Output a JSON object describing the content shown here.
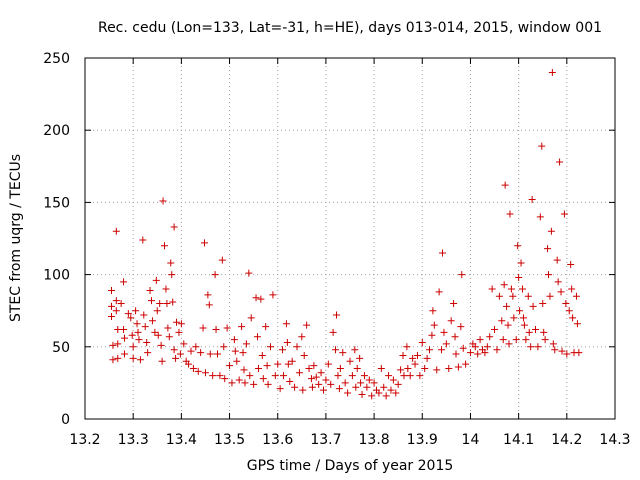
{
  "chart_data": {
    "type": "scatter",
    "title": "Rec. cedu (Lon=133, Lat=-31, h=HE), days 013-014, 2015, window 001",
    "xlabel": "GPS time / Days of year 2015",
    "ylabel": "STEC from uqrg / TECUs",
    "xlim": [
      13.2,
      14.3
    ],
    "ylim": [
      0,
      250
    ],
    "xticks": [
      "13.2",
      "13.3",
      "13.4",
      "13.5",
      "13.6",
      "13.7",
      "13.8",
      "13.9",
      "14",
      "14.1",
      "14.2",
      "14.3"
    ],
    "yticks": [
      "0",
      "50",
      "100",
      "150",
      "200",
      "250"
    ],
    "grid": true,
    "marker": "plus",
    "color": "#cc0000",
    "series": [
      {
        "name": "",
        "points": [
          [
            13.255,
            89
          ],
          [
            13.255,
            78
          ],
          [
            13.255,
            71
          ],
          [
            13.258,
            51
          ],
          [
            13.258,
            41
          ],
          [
            13.265,
            130
          ],
          [
            13.265,
            82
          ],
          [
            13.265,
            75
          ],
          [
            13.268,
            62
          ],
          [
            13.268,
            52
          ],
          [
            13.268,
            42
          ],
          [
            13.275,
            80
          ],
          [
            13.28,
            95
          ],
          [
            13.28,
            62
          ],
          [
            13.282,
            56
          ],
          [
            13.282,
            45
          ],
          [
            13.29,
            73
          ],
          [
            13.295,
            70
          ],
          [
            13.298,
            58
          ],
          [
            13.3,
            50
          ],
          [
            13.3,
            42
          ],
          [
            13.305,
            75
          ],
          [
            13.308,
            66
          ],
          [
            13.31,
            60
          ],
          [
            13.312,
            55
          ],
          [
            13.315,
            41
          ],
          [
            13.32,
            124
          ],
          [
            13.322,
            72
          ],
          [
            13.325,
            64
          ],
          [
            13.328,
            53
          ],
          [
            13.33,
            46
          ],
          [
            13.335,
            89
          ],
          [
            13.338,
            82
          ],
          [
            13.34,
            68
          ],
          [
            13.345,
            60
          ],
          [
            13.348,
            96
          ],
          [
            13.35,
            75
          ],
          [
            13.352,
            58
          ],
          [
            13.355,
            80
          ],
          [
            13.358,
            51
          ],
          [
            13.36,
            40
          ],
          [
            13.362,
            151
          ],
          [
            13.365,
            120
          ],
          [
            13.368,
            90
          ],
          [
            13.37,
            80
          ],
          [
            13.372,
            63
          ],
          [
            13.375,
            57
          ],
          [
            13.378,
            108
          ],
          [
            13.38,
            100
          ],
          [
            13.382,
            81
          ],
          [
            13.385,
            133
          ],
          [
            13.385,
            48
          ],
          [
            13.388,
            42
          ],
          [
            13.39,
            67
          ],
          [
            13.395,
            60
          ],
          [
            13.398,
            45
          ],
          [
            13.4,
            66
          ],
          [
            13.405,
            52
          ],
          [
            13.41,
            40
          ],
          [
            13.415,
            38
          ],
          [
            13.42,
            47
          ],
          [
            13.425,
            35
          ],
          [
            13.43,
            50
          ],
          [
            13.435,
            33
          ],
          [
            13.44,
            46
          ],
          [
            13.445,
            63
          ],
          [
            13.448,
            122
          ],
          [
            13.45,
            32
          ],
          [
            13.455,
            86
          ],
          [
            13.458,
            79
          ],
          [
            13.46,
            45
          ],
          [
            13.465,
            30
          ],
          [
            13.47,
            100
          ],
          [
            13.472,
            62
          ],
          [
            13.475,
            45
          ],
          [
            13.48,
            30
          ],
          [
            13.485,
            110
          ],
          [
            13.488,
            50
          ],
          [
            13.49,
            28
          ],
          [
            13.495,
            63
          ],
          [
            13.5,
            37
          ],
          [
            13.505,
            25
          ],
          [
            13.51,
            55
          ],
          [
            13.512,
            47
          ],
          [
            13.515,
            40
          ],
          [
            13.52,
            27
          ],
          [
            13.525,
            64
          ],
          [
            13.528,
            46
          ],
          [
            13.53,
            34
          ],
          [
            13.532,
            25
          ],
          [
            13.535,
            52
          ],
          [
            13.54,
            101
          ],
          [
            13.542,
            30
          ],
          [
            13.545,
            70
          ],
          [
            13.55,
            24
          ],
          [
            13.555,
            84
          ],
          [
            13.558,
            57
          ],
          [
            13.56,
            35
          ],
          [
            13.565,
            83
          ],
          [
            13.568,
            44
          ],
          [
            13.57,
            28
          ],
          [
            13.575,
            64
          ],
          [
            13.578,
            37
          ],
          [
            13.58,
            24
          ],
          [
            13.585,
            50
          ],
          [
            13.59,
            86
          ],
          [
            13.595,
            30
          ],
          [
            13.6,
            38
          ],
          [
            13.605,
            21
          ],
          [
            13.61,
            48
          ],
          [
            13.612,
            30
          ],
          [
            13.618,
            66
          ],
          [
            13.62,
            53
          ],
          [
            13.622,
            38
          ],
          [
            13.625,
            26
          ],
          [
            13.63,
            40
          ],
          [
            13.635,
            22
          ],
          [
            13.64,
            50
          ],
          [
            13.645,
            32
          ],
          [
            13.65,
            57
          ],
          [
            13.652,
            20
          ],
          [
            13.655,
            44
          ],
          [
            13.66,
            65
          ],
          [
            13.665,
            35
          ],
          [
            13.67,
            28
          ],
          [
            13.672,
            22
          ],
          [
            13.675,
            37
          ],
          [
            13.68,
            29
          ],
          [
            13.685,
            24
          ],
          [
            13.69,
            32
          ],
          [
            13.695,
            20
          ],
          [
            13.7,
            27
          ],
          [
            13.705,
            38
          ],
          [
            13.71,
            24
          ],
          [
            13.715,
            60
          ],
          [
            13.72,
            48
          ],
          [
            13.722,
            72
          ],
          [
            13.725,
            30
          ],
          [
            13.728,
            21
          ],
          [
            13.73,
            35
          ],
          [
            13.735,
            46
          ],
          [
            13.74,
            25
          ],
          [
            13.745,
            18
          ],
          [
            13.75,
            40
          ],
          [
            13.755,
            30
          ],
          [
            13.76,
            48
          ],
          [
            13.762,
            22
          ],
          [
            13.765,
            35
          ],
          [
            13.77,
            42
          ],
          [
            13.772,
            25
          ],
          [
            13.775,
            17
          ],
          [
            13.78,
            30
          ],
          [
            13.785,
            22
          ],
          [
            13.79,
            27
          ],
          [
            13.795,
            16
          ],
          [
            13.8,
            25
          ],
          [
            13.805,
            20
          ],
          [
            13.81,
            18
          ],
          [
            13.815,
            35
          ],
          [
            13.82,
            22
          ],
          [
            13.825,
            16
          ],
          [
            13.83,
            30
          ],
          [
            13.835,
            20
          ],
          [
            13.84,
            27
          ],
          [
            13.845,
            18
          ],
          [
            13.85,
            24
          ],
          [
            13.855,
            34
          ],
          [
            13.86,
            44
          ],
          [
            13.862,
            30
          ],
          [
            13.868,
            50
          ],
          [
            13.87,
            35
          ],
          [
            13.875,
            30
          ],
          [
            13.88,
            42
          ],
          [
            13.885,
            38
          ],
          [
            13.89,
            44
          ],
          [
            13.895,
            30
          ],
          [
            13.9,
            53
          ],
          [
            13.905,
            35
          ],
          [
            13.91,
            42
          ],
          [
            13.915,
            48
          ],
          [
            13.92,
            58
          ],
          [
            13.922,
            75
          ],
          [
            13.925,
            65
          ],
          [
            13.93,
            34
          ],
          [
            13.935,
            88
          ],
          [
            13.94,
            48
          ],
          [
            13.942,
            115
          ],
          [
            13.945,
            60
          ],
          [
            13.95,
            52
          ],
          [
            13.955,
            35
          ],
          [
            13.96,
            68
          ],
          [
            13.965,
            80
          ],
          [
            13.968,
            57
          ],
          [
            13.97,
            45
          ],
          [
            13.975,
            36
          ],
          [
            13.98,
            64
          ],
          [
            13.982,
            100
          ],
          [
            13.985,
            49
          ],
          [
            13.99,
            38
          ],
          [
            14.0,
            46
          ],
          [
            14.005,
            52
          ],
          [
            14.01,
            50
          ],
          [
            14.015,
            45
          ],
          [
            14.02,
            55
          ],
          [
            14.025,
            48
          ],
          [
            14.03,
            46
          ],
          [
            14.035,
            50
          ],
          [
            14.04,
            57
          ],
          [
            14.045,
            90
          ],
          [
            14.05,
            62
          ],
          [
            14.055,
            48
          ],
          [
            14.06,
            85
          ],
          [
            14.065,
            68
          ],
          [
            14.068,
            55
          ],
          [
            14.07,
            93
          ],
          [
            14.072,
            162
          ],
          [
            14.075,
            78
          ],
          [
            14.078,
            65
          ],
          [
            14.08,
            52
          ],
          [
            14.082,
            142
          ],
          [
            14.085,
            90
          ],
          [
            14.088,
            85
          ],
          [
            14.09,
            70
          ],
          [
            14.095,
            55
          ],
          [
            14.098,
            120
          ],
          [
            14.1,
            98
          ],
          [
            14.102,
            75
          ],
          [
            14.105,
            108
          ],
          [
            14.108,
            90
          ],
          [
            14.11,
            70
          ],
          [
            14.112,
            65
          ],
          [
            14.115,
            55
          ],
          [
            14.12,
            85
          ],
          [
            14.122,
            60
          ],
          [
            14.125,
            50
          ],
          [
            14.128,
            152
          ],
          [
            14.13,
            78
          ],
          [
            14.135,
            62
          ],
          [
            14.14,
            50
          ],
          [
            14.145,
            140
          ],
          [
            14.148,
            189
          ],
          [
            14.15,
            80
          ],
          [
            14.152,
            60
          ],
          [
            14.155,
            55
          ],
          [
            14.16,
            118
          ],
          [
            14.162,
            100
          ],
          [
            14.165,
            85
          ],
          [
            14.168,
            130
          ],
          [
            14.17,
            240
          ],
          [
            14.172,
            52
          ],
          [
            14.175,
            48
          ],
          [
            14.18,
            110
          ],
          [
            14.182,
            95
          ],
          [
            14.185,
            178
          ],
          [
            14.188,
            88
          ],
          [
            14.19,
            47
          ],
          [
            14.195,
            142
          ],
          [
            14.198,
            80
          ],
          [
            14.2,
            45
          ],
          [
            14.205,
            75
          ],
          [
            14.208,
            107
          ],
          [
            14.21,
            90
          ],
          [
            14.212,
            70
          ],
          [
            14.215,
            46
          ],
          [
            14.22,
            85
          ],
          [
            14.222,
            66
          ],
          [
            14.225,
            46
          ]
        ]
      }
    ]
  }
}
